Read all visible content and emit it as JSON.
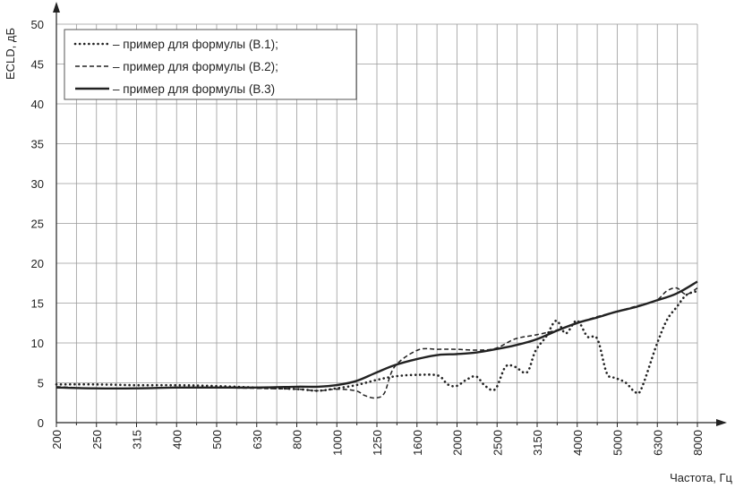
{
  "chart_data": {
    "type": "line",
    "title": "",
    "xlabel": "Частота, Гц",
    "ylabel": "ECLD, дБ",
    "x_scale": "third-octave bands (log frequency)",
    "categories": [
      "200",
      "250",
      "315",
      "400",
      "500",
      "630",
      "800",
      "1000",
      "1250",
      "1600",
      "2000",
      "2500",
      "3150",
      "4000",
      "5000",
      "6300",
      "8000"
    ],
    "x_half_ticks": true,
    "yticks": [
      "0",
      "5",
      "10",
      "15",
      "20",
      "25",
      "30",
      "35",
      "40",
      "45",
      "50"
    ],
    "ylim": [
      0,
      50
    ],
    "grid": true,
    "legend_position": "top-left",
    "series": [
      {
        "name": "– пример для формулы (В.1);",
        "style": "dotted",
        "points": [
          [
            200,
            4.8
          ],
          [
            250,
            4.8
          ],
          [
            315,
            4.7
          ],
          [
            400,
            4.7
          ],
          [
            500,
            4.6
          ],
          [
            630,
            4.4
          ],
          [
            800,
            4.2
          ],
          [
            900,
            4.0
          ],
          [
            1000,
            4.3
          ],
          [
            1120,
            4.7
          ],
          [
            1250,
            5.3
          ],
          [
            1400,
            5.8
          ],
          [
            1600,
            6.0
          ],
          [
            1800,
            5.9
          ],
          [
            1900,
            4.8
          ],
          [
            2000,
            4.6
          ],
          [
            2120,
            5.4
          ],
          [
            2240,
            5.8
          ],
          [
            2360,
            4.6
          ],
          [
            2500,
            4.2
          ],
          [
            2650,
            7.0
          ],
          [
            2800,
            7.0
          ],
          [
            3000,
            6.3
          ],
          [
            3150,
            9.0
          ],
          [
            3350,
            10.8
          ],
          [
            3550,
            12.8
          ],
          [
            3750,
            11.2
          ],
          [
            4000,
            12.8
          ],
          [
            4250,
            10.8
          ],
          [
            4500,
            10.5
          ],
          [
            4750,
            6.2
          ],
          [
            5000,
            5.6
          ],
          [
            5300,
            5.0
          ],
          [
            5600,
            3.8
          ],
          [
            5800,
            4.3
          ],
          [
            6300,
            9.5
          ],
          [
            6700,
            12.8
          ],
          [
            7100,
            14.5
          ],
          [
            7500,
            16.0
          ],
          [
            8000,
            16.5
          ]
        ]
      },
      {
        "name": "– пример для формулы (В.2);",
        "style": "dashed",
        "points": [
          [
            200,
            4.5
          ],
          [
            250,
            4.3
          ],
          [
            315,
            4.3
          ],
          [
            400,
            4.4
          ],
          [
            500,
            4.4
          ],
          [
            630,
            4.3
          ],
          [
            800,
            4.2
          ],
          [
            900,
            4.0
          ],
          [
            1000,
            4.2
          ],
          [
            1120,
            4.0
          ],
          [
            1180,
            3.4
          ],
          [
            1250,
            3.1
          ],
          [
            1320,
            3.7
          ],
          [
            1400,
            7.0
          ],
          [
            1600,
            9.1
          ],
          [
            1800,
            9.2
          ],
          [
            2000,
            9.2
          ],
          [
            2240,
            9.1
          ],
          [
            2500,
            9.3
          ],
          [
            2800,
            10.5
          ],
          [
            3150,
            11.0
          ],
          [
            3550,
            11.6
          ],
          [
            4000,
            12.5
          ],
          [
            4500,
            13.3
          ],
          [
            5000,
            13.9
          ],
          [
            5600,
            14.6
          ],
          [
            6300,
            15.3
          ],
          [
            6700,
            16.5
          ],
          [
            7100,
            16.9
          ],
          [
            7500,
            16.1
          ],
          [
            8000,
            16.9
          ]
        ]
      },
      {
        "name": "– пример для формулы (В.3)",
        "style": "solid",
        "points": [
          [
            200,
            4.4
          ],
          [
            250,
            4.3
          ],
          [
            315,
            4.3
          ],
          [
            400,
            4.4
          ],
          [
            500,
            4.4
          ],
          [
            630,
            4.4
          ],
          [
            800,
            4.5
          ],
          [
            900,
            4.5
          ],
          [
            1000,
            4.7
          ],
          [
            1120,
            5.2
          ],
          [
            1250,
            6.2
          ],
          [
            1400,
            7.2
          ],
          [
            1600,
            8.0
          ],
          [
            1800,
            8.5
          ],
          [
            2000,
            8.6
          ],
          [
            2240,
            8.8
          ],
          [
            2500,
            9.2
          ],
          [
            2800,
            9.7
          ],
          [
            3150,
            10.4
          ],
          [
            3550,
            11.5
          ],
          [
            4000,
            12.5
          ],
          [
            4500,
            13.2
          ],
          [
            5000,
            13.9
          ],
          [
            5600,
            14.5
          ],
          [
            6300,
            15.3
          ],
          [
            7100,
            16.2
          ],
          [
            8000,
            17.7
          ]
        ]
      }
    ]
  }
}
